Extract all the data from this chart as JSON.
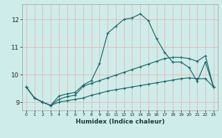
{
  "xlabel": "Humidex (Indice chaleur)",
  "ylabel": "",
  "xlim": [
    -0.5,
    23.5
  ],
  "ylim": [
    8.7,
    12.55
  ],
  "yticks": [
    9,
    10,
    11,
    12
  ],
  "xticks": [
    0,
    1,
    2,
    3,
    4,
    5,
    6,
    7,
    8,
    9,
    10,
    11,
    12,
    13,
    14,
    15,
    16,
    17,
    18,
    19,
    20,
    21,
    22,
    23
  ],
  "bg_color": "#ceecea",
  "line_color": "#1a6b6b",
  "grid_color": "#e8b4b4",
  "line1_x": [
    0,
    1,
    2,
    3,
    4,
    5,
    6,
    7,
    8,
    9,
    10,
    11,
    12,
    13,
    14,
    15,
    16,
    17,
    18,
    19,
    20,
    21,
    22,
    23
  ],
  "line1_y": [
    9.55,
    9.15,
    9.0,
    8.88,
    9.22,
    9.3,
    9.35,
    9.62,
    9.78,
    10.4,
    11.5,
    11.75,
    12.0,
    12.05,
    12.2,
    11.95,
    11.3,
    10.8,
    10.45,
    10.45,
    10.25,
    9.75,
    10.45,
    9.55
  ],
  "line2_x": [
    0,
    1,
    2,
    3,
    4,
    5,
    6,
    7,
    8,
    9,
    10,
    11,
    12,
    13,
    14,
    15,
    16,
    17,
    18,
    19,
    20,
    21,
    22,
    23
  ],
  "line2_y": [
    9.55,
    9.15,
    9.0,
    8.88,
    9.1,
    9.2,
    9.25,
    9.58,
    9.68,
    9.78,
    9.88,
    9.98,
    10.08,
    10.18,
    10.28,
    10.38,
    10.48,
    10.58,
    10.62,
    10.62,
    10.58,
    10.48,
    10.68,
    9.55
  ],
  "line3_x": [
    0,
    1,
    2,
    3,
    4,
    5,
    6,
    7,
    8,
    9,
    10,
    11,
    12,
    13,
    14,
    15,
    16,
    17,
    18,
    19,
    20,
    21,
    22,
    23
  ],
  "line3_y": [
    9.55,
    9.15,
    9.0,
    8.88,
    9.0,
    9.05,
    9.1,
    9.15,
    9.25,
    9.32,
    9.4,
    9.45,
    9.5,
    9.55,
    9.6,
    9.65,
    9.7,
    9.75,
    9.8,
    9.85,
    9.88,
    9.85,
    9.85,
    9.55
  ]
}
